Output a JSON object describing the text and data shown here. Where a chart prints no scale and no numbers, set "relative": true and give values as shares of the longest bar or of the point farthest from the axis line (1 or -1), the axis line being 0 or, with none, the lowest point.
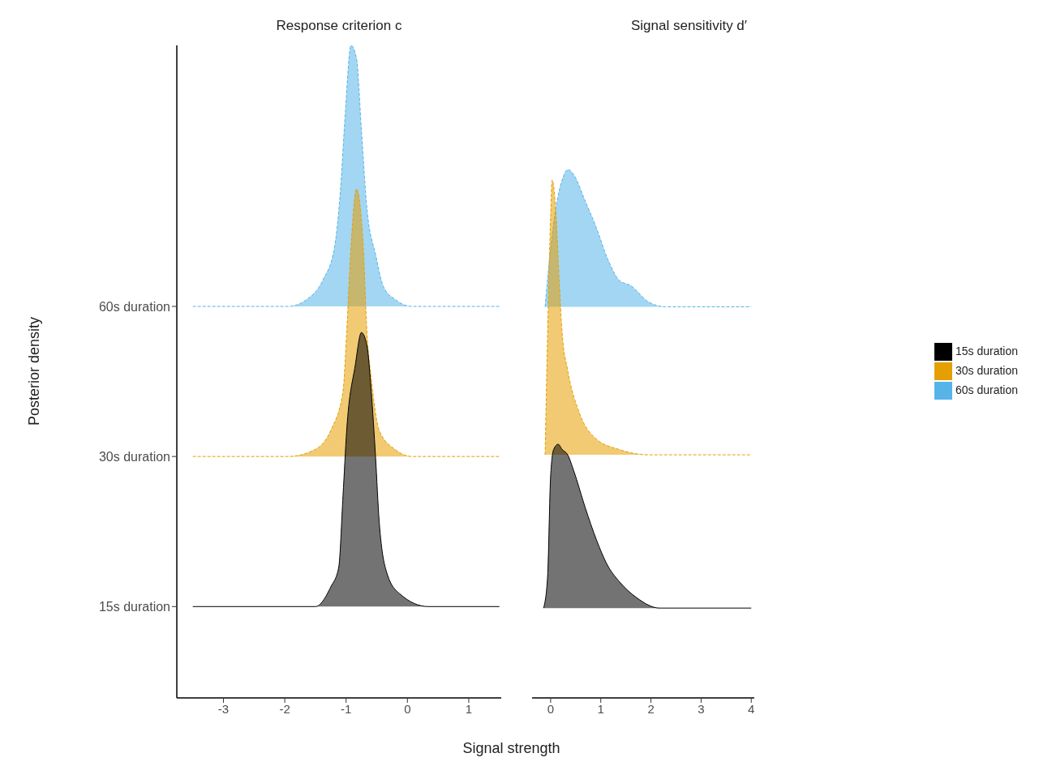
{
  "chart_data": [
    {
      "type": "area",
      "relative": true,
      "title": "Response criterion c",
      "xlabel": "Signal strength",
      "ylabel": "Posterior density",
      "xlim": [
        -3.76,
        1.53
      ],
      "xticks": [
        -3,
        -2,
        -1,
        0,
        1
      ],
      "grid": false,
      "legend": false,
      "series": [
        {
          "name": "15s duration",
          "color": "#000000",
          "line_style": "solid",
          "x": [
            -3.5,
            -1.5,
            -1.25,
            -1.12,
            -1.05,
            -0.99,
            -0.85,
            -0.75,
            -0.66,
            -0.59,
            -0.52,
            -0.46,
            -0.33,
            -0.13,
            0.34,
            1.5
          ],
          "values": [
            0.14,
            0.14,
            0.17,
            0.2,
            0.31,
            0.41,
            0.51,
            0.56,
            0.54,
            0.47,
            0.37,
            0.27,
            0.19,
            0.16,
            0.14,
            0.14
          ]
        },
        {
          "name": "30s duration",
          "color": "#e69f00",
          "line_style": "dashed",
          "x": [
            -3.5,
            -1.94,
            -1.52,
            -1.25,
            -1.05,
            -0.99,
            -0.92,
            -0.83,
            -0.72,
            -0.66,
            -0.59,
            -0.46,
            -0.19,
            0.07,
            1.5
          ],
          "values": [
            0.37,
            0.37,
            0.38,
            0.41,
            0.47,
            0.56,
            0.69,
            0.78,
            0.69,
            0.56,
            0.49,
            0.41,
            0.38,
            0.37,
            0.37
          ]
        },
        {
          "name": "60s duration",
          "color": "#56b4e9",
          "line_style": "dashed",
          "x": [
            -3.5,
            -1.94,
            -1.65,
            -1.38,
            -1.19,
            -1.09,
            -1.01,
            -0.92,
            -0.83,
            -0.75,
            -0.66,
            -0.52,
            -0.39,
            -0.19,
            0.07,
            1.5
          ],
          "values": [
            0.6,
            0.6,
            0.61,
            0.64,
            0.69,
            0.78,
            0.9,
            1,
            0.98,
            0.87,
            0.75,
            0.68,
            0.63,
            0.61,
            0.6,
            0.6
          ]
        }
      ]
    },
    {
      "type": "area",
      "relative": true,
      "title": "Signal sensitivity d′",
      "xlim": [
        -0.37,
        4.06
      ],
      "xticks": [
        0,
        1,
        2,
        3,
        4
      ],
      "tick_labels": "x",
      "grid": false,
      "legend": "right",
      "series": [
        {
          "name": "15s duration",
          "color": "#000000",
          "line_style": "solid",
          "x": [
            -0.14,
            -0.06,
            0,
            0.06,
            0.15,
            0.23,
            0.34,
            0.46,
            0.69,
            0.91,
            1.14,
            1.37,
            1.71,
            2.17,
            4.0
          ],
          "values": [
            0.17,
            0.23,
            0.42,
            0.47,
            0.48,
            0.47,
            0.46,
            0.43,
            0.36,
            0.3,
            0.25,
            0.22,
            0.19,
            0.17,
            0.17
          ]
        },
        {
          "name": "30s duration",
          "color": "#e69f00",
          "line_style": "dashed",
          "x": [
            -0.11,
            -0.06,
            0,
            0.03,
            0.11,
            0.17,
            0.23,
            0.34,
            0.57,
            0.91,
            1.37,
            1.94,
            4.0
          ],
          "values": [
            0.46,
            0.69,
            0.91,
            0.98,
            0.91,
            0.79,
            0.69,
            0.62,
            0.54,
            0.49,
            0.47,
            0.46,
            0.46
          ]
        },
        {
          "name": "60s duration",
          "color": "#56b4e9",
          "line_style": "dashed",
          "x": [
            -0.11,
            0,
            0.11,
            0.23,
            0.35,
            0.46,
            0.69,
            0.91,
            1.14,
            1.37,
            1.6,
            1.94,
            2.29,
            4.0
          ],
          "values": [
            0.74,
            0.85,
            0.93,
            0.98,
            1,
            0.99,
            0.94,
            0.89,
            0.83,
            0.79,
            0.78,
            0.75,
            0.74,
            0.74
          ]
        }
      ]
    }
  ]
}
